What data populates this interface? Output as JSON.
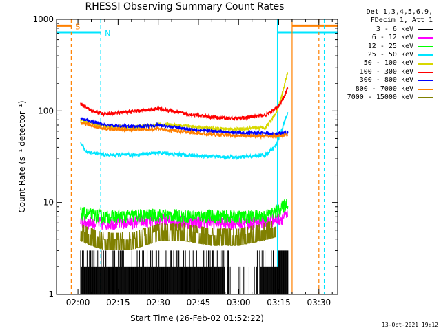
{
  "chart_data": {
    "type": "line",
    "title": "RHESSI Observing Summary Count Rates",
    "xlabel": "Start Time (26-Feb-02 01:52:22)",
    "ylabel": "Count Rate (s⁻¹ detector⁻¹)",
    "ylog": true,
    "ylim": [
      1,
      1000
    ],
    "xlim_min": [
      -8,
      97
    ],
    "y_ticks": [
      "1",
      "10",
      "100",
      "1000"
    ],
    "x_ticks": [
      "02:00",
      "02:15",
      "02:30",
      "02:45",
      "03:00",
      "03:15",
      "03:30"
    ],
    "legend_header": [
      "Det 1,3,4,5,6,9,",
      "FDecim 1, Att 1"
    ],
    "legend_position": "outside-right",
    "markers": [
      {
        "label": "S",
        "t": -2.5,
        "y": 850,
        "color": "#ff8000"
      },
      {
        "label": "N",
        "t": 8.5,
        "y": 720,
        "color": "#00e5ff"
      }
    ],
    "vertical_lines": [
      {
        "t": -2.5,
        "color": "#ff8000",
        "style": "dashed"
      },
      {
        "t": 8.5,
        "color": "#00e5ff",
        "style": "dashed"
      },
      {
        "t": 74.5,
        "color": "#00e5ff",
        "style": "solid"
      },
      {
        "t": 80,
        "color": "#ff8000",
        "style": "solid"
      },
      {
        "t": 90,
        "color": "#ff8000",
        "style": "dashed"
      },
      {
        "t": 92,
        "color": "#00e5ff",
        "style": "dashed"
      }
    ],
    "flag_lines": [
      {
        "color": "#ff8000",
        "y": 850,
        "segments": [
          [
            -8,
            -2.5
          ],
          [
            80,
            97
          ]
        ]
      },
      {
        "color": "#00e5ff",
        "y": 720,
        "segments": [
          [
            -8,
            8.5
          ],
          [
            74.5,
            97
          ]
        ]
      }
    ],
    "series": [
      {
        "name": "3 - 6 keV",
        "color": "#000000",
        "style": "spikes",
        "x": [
          1,
          10,
          20,
          30,
          40,
          50,
          60,
          70,
          76,
          78.5
        ],
        "y": [
          3,
          2,
          2,
          2,
          2,
          2,
          2,
          2,
          3,
          3
        ]
      },
      {
        "name": "6 - 12 keV",
        "color": "#ff00ff",
        "style": "noisy",
        "x": [
          1,
          10,
          20,
          30,
          40,
          50,
          60,
          70,
          75,
          78.5
        ],
        "y": [
          6,
          5.8,
          6,
          6.3,
          6,
          6,
          5.8,
          6,
          6.5,
          7
        ]
      },
      {
        "name": "12 - 25 keV",
        "color": "#00ff00",
        "style": "noisy",
        "x": [
          1,
          10,
          20,
          30,
          40,
          50,
          60,
          70,
          75,
          78.5
        ],
        "y": [
          7.5,
          6.8,
          7,
          7.2,
          7,
          7,
          6.8,
          7,
          8,
          10
        ]
      },
      {
        "name": "25 - 50 keV",
        "color": "#00e5ff",
        "style": "line",
        "x": [
          1,
          3,
          10,
          20,
          30,
          40,
          50,
          60,
          70,
          74,
          76,
          78.5
        ],
        "y": [
          45,
          36,
          33,
          33,
          35,
          33,
          32,
          31,
          33,
          42,
          60,
          100
        ]
      },
      {
        "name": "50 - 100 keV",
        "color": "#d8d800",
        "style": "line",
        "x": [
          1,
          10,
          20,
          30,
          40,
          50,
          60,
          70,
          74,
          76,
          78.5
        ],
        "y": [
          78,
          68,
          66,
          71,
          69,
          64,
          63,
          66,
          95,
          140,
          280
        ]
      },
      {
        "name": "100 - 300 keV",
        "color": "#ff0000",
        "style": "line",
        "x": [
          1,
          5,
          10,
          20,
          30,
          40,
          50,
          60,
          70,
          74,
          76,
          78.5
        ],
        "y": [
          120,
          100,
          92,
          98,
          106,
          93,
          85,
          83,
          90,
          105,
          125,
          180
        ]
      },
      {
        "name": "300 - 800 keV",
        "color": "#0000ff",
        "style": "line",
        "x": [
          1,
          10,
          20,
          30,
          40,
          50,
          60,
          70,
          74,
          78.5
        ],
        "y": [
          82,
          70,
          67,
          70,
          64,
          60,
          58,
          57,
          56,
          58
        ]
      },
      {
        "name": "800 - 7000 keV",
        "color": "#ff8000",
        "style": "line",
        "x": [
          1,
          10,
          20,
          30,
          40,
          50,
          60,
          70,
          74,
          78.5
        ],
        "y": [
          74,
          64,
          62,
          64,
          59,
          55,
          54,
          53,
          53,
          54
        ]
      },
      {
        "name": "7000 - 15000 keV",
        "color": "#808000",
        "style": "stepped",
        "x": [
          1,
          5,
          10,
          20,
          30,
          40,
          50,
          60,
          70,
          74
        ],
        "y": [
          4.5,
          4,
          3.6,
          3.6,
          4.5,
          4.5,
          4,
          4,
          4.6,
          5
        ]
      }
    ]
  },
  "timestamp": "13-Oct-2021 19:12"
}
